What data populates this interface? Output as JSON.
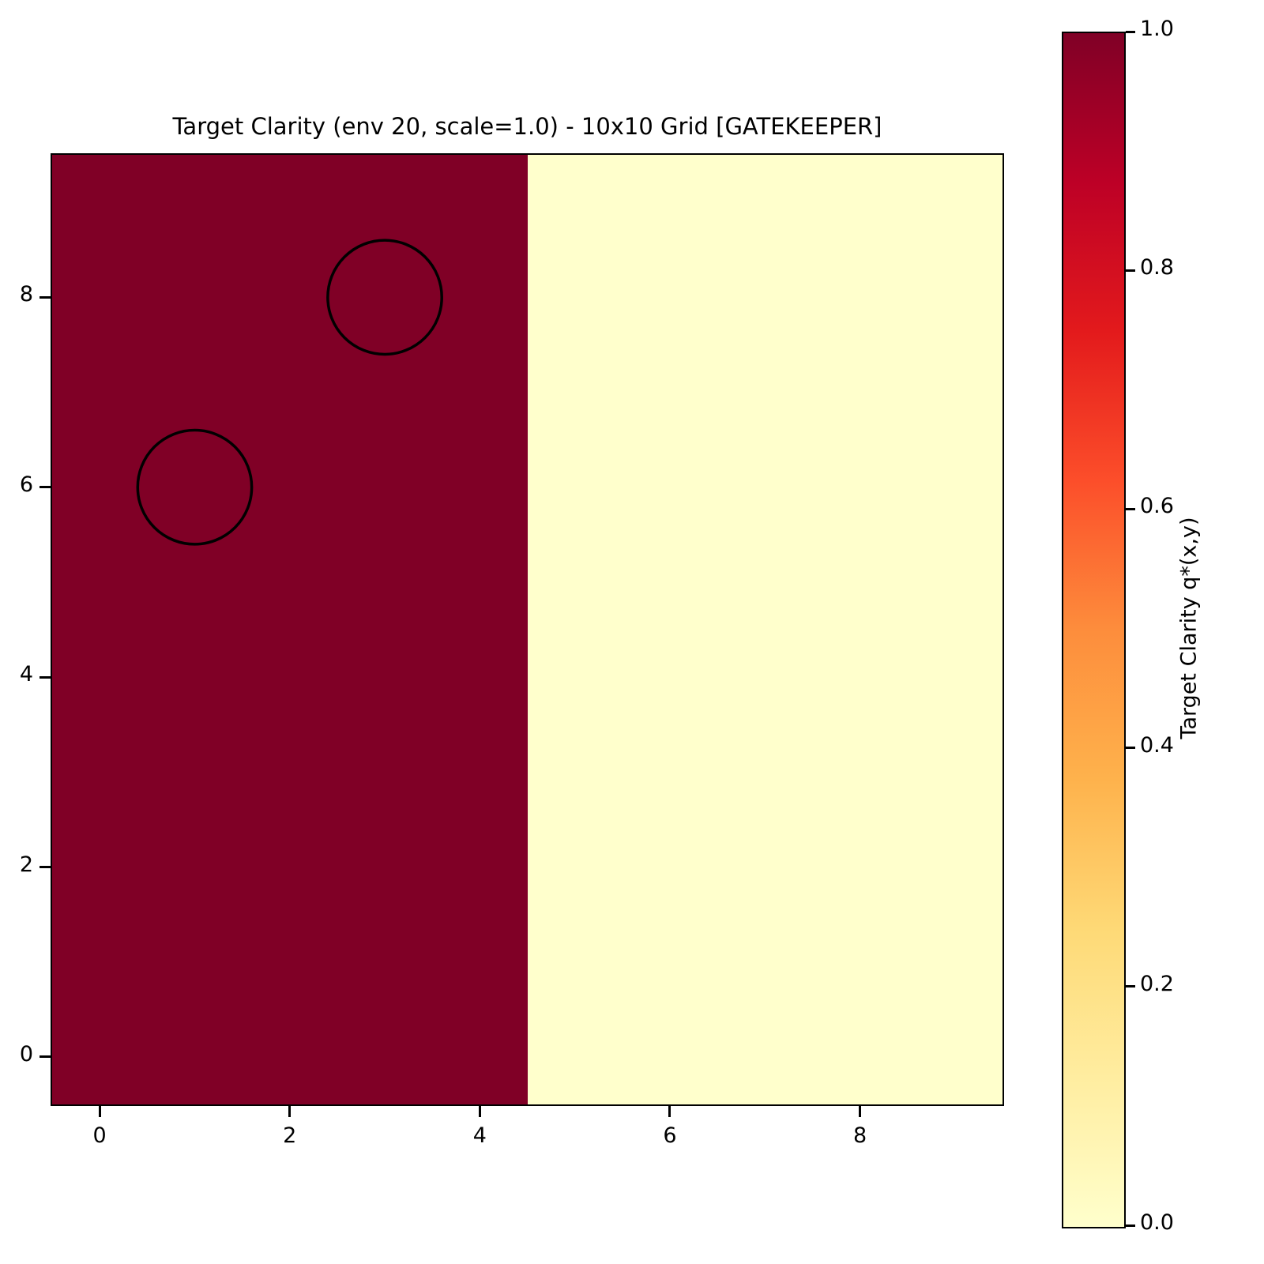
{
  "chart_data": {
    "type": "heatmap",
    "title": "Target Clarity (env 20, scale=1.0) - 10x10 Grid [GATEKEEPER]",
    "grid_size": {
      "cols": 10,
      "rows": 10
    },
    "x_range": [
      -0.5,
      9.5
    ],
    "y_range": [
      -0.5,
      9.5
    ],
    "x_ticks": [
      0,
      2,
      4,
      6,
      8
    ],
    "y_ticks": [
      0,
      2,
      4,
      6,
      8
    ],
    "value_range": [
      0.0,
      1.0
    ],
    "grid_lines": false,
    "colormap": {
      "name": "YlOrRd",
      "stops": [
        "#ffffcc",
        "#ffeda0",
        "#fed976",
        "#feb24c",
        "#fd8d3c",
        "#fc4e2a",
        "#e31a1c",
        "#bd0026",
        "#800026"
      ]
    },
    "high_color": "#800026",
    "low_color": "#ffffcc",
    "rows_note": "row index = y coordinate (bottom row first); columns x=0..4 have value 1.0, columns x=5..9 have value 0.0",
    "rows": [
      [
        1.0,
        1.0,
        1.0,
        1.0,
        1.0,
        0.0,
        0.0,
        0.0,
        0.0,
        0.0
      ],
      [
        1.0,
        1.0,
        1.0,
        1.0,
        1.0,
        0.0,
        0.0,
        0.0,
        0.0,
        0.0
      ],
      [
        1.0,
        1.0,
        1.0,
        1.0,
        1.0,
        0.0,
        0.0,
        0.0,
        0.0,
        0.0
      ],
      [
        1.0,
        1.0,
        1.0,
        1.0,
        1.0,
        0.0,
        0.0,
        0.0,
        0.0,
        0.0
      ],
      [
        1.0,
        1.0,
        1.0,
        1.0,
        1.0,
        0.0,
        0.0,
        0.0,
        0.0,
        0.0
      ],
      [
        1.0,
        1.0,
        1.0,
        1.0,
        1.0,
        0.0,
        0.0,
        0.0,
        0.0,
        0.0
      ],
      [
        1.0,
        1.0,
        1.0,
        1.0,
        1.0,
        0.0,
        0.0,
        0.0,
        0.0,
        0.0
      ],
      [
        1.0,
        1.0,
        1.0,
        1.0,
        1.0,
        0.0,
        0.0,
        0.0,
        0.0,
        0.0
      ],
      [
        1.0,
        1.0,
        1.0,
        1.0,
        1.0,
        0.0,
        0.0,
        0.0,
        0.0,
        0.0
      ],
      [
        1.0,
        1.0,
        1.0,
        1.0,
        1.0,
        0.0,
        0.0,
        0.0,
        0.0,
        0.0
      ]
    ],
    "annotations": [
      {
        "shape": "circle",
        "x": 3,
        "y": 8,
        "radius": 0.6,
        "stroke": "#000000",
        "fill": "none"
      },
      {
        "shape": "circle",
        "x": 1,
        "y": 6,
        "radius": 0.6,
        "stroke": "#000000",
        "fill": "none"
      }
    ],
    "colorbar": {
      "label": "Target Clarity q*(x,y)",
      "ticks": [
        "1.0",
        "0.8",
        "0.6",
        "0.4",
        "0.2",
        "0.0"
      ],
      "orientation": "vertical",
      "position": "right"
    }
  }
}
